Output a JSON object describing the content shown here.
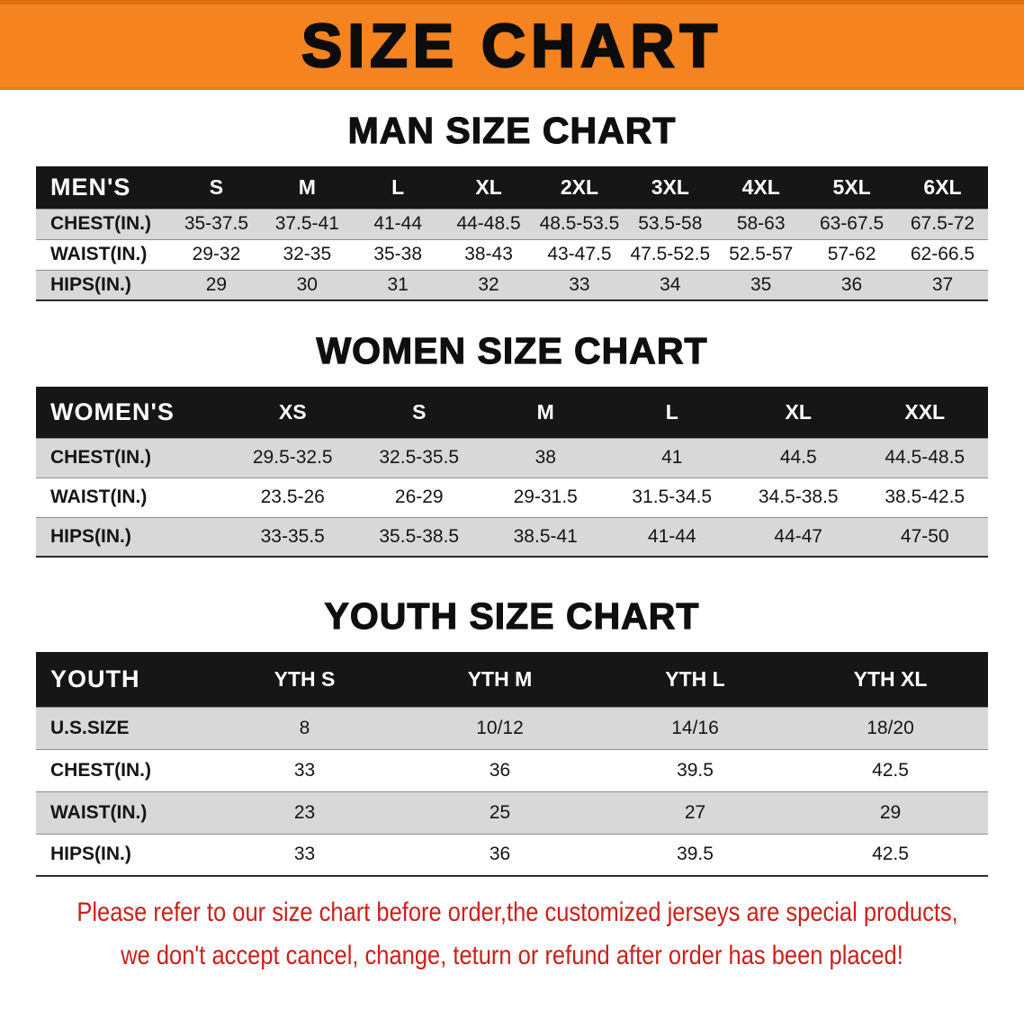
{
  "banner": {
    "title": "SIZE CHART",
    "bg_color": "#f5831f",
    "text_color": "#0c0c0c"
  },
  "colors": {
    "table_header_bg": "#161616",
    "row_stripe": "#d8d8d8",
    "notice_red": "#c9201a"
  },
  "sections": [
    {
      "heading": "MAN SIZE CHART",
      "table": {
        "header_label": "MEN'S",
        "columns": [
          "S",
          "M",
          "L",
          "XL",
          "2XL",
          "3XL",
          "4XL",
          "5XL",
          "6XL"
        ],
        "rows": [
          {
            "label": "CHEST(IN.)",
            "values": [
              "35-37.5",
              "37.5-41",
              "41-44",
              "44-48.5",
              "48.5-53.5",
              "53.5-58",
              "58-63",
              "63-67.5",
              "67.5-72"
            ]
          },
          {
            "label": "WAIST(IN.)",
            "values": [
              "29-32",
              "32-35",
              "35-38",
              "38-43",
              "43-47.5",
              "47.5-52.5",
              "52.5-57",
              "57-62",
              "62-66.5"
            ]
          },
          {
            "label": "HIPS(IN.)",
            "values": [
              "29",
              "30",
              "31",
              "32",
              "33",
              "34",
              "35",
              "36",
              "37"
            ]
          }
        ]
      }
    },
    {
      "heading": "WOMEN SIZE CHART",
      "table": {
        "header_label": "WOMEN'S",
        "columns": [
          "XS",
          "S",
          "M",
          "L",
          "XL",
          "XXL"
        ],
        "rows": [
          {
            "label": "CHEST(IN.)",
            "values": [
              "29.5-32.5",
              "32.5-35.5",
              "38",
              "41",
              "44.5",
              "44.5-48.5"
            ]
          },
          {
            "label": "WAIST(IN.)",
            "values": [
              "23.5-26",
              "26-29",
              "29-31.5",
              "31.5-34.5",
              "34.5-38.5",
              "38.5-42.5"
            ]
          },
          {
            "label": "HIPS(IN.)",
            "values": [
              "33-35.5",
              "35.5-38.5",
              "38.5-41",
              "41-44",
              "44-47",
              "47-50"
            ]
          }
        ]
      }
    },
    {
      "heading": "YOUTH SIZE CHART",
      "table": {
        "header_label": "YOUTH",
        "columns": [
          "YTH S",
          "YTH M",
          "YTH L",
          "YTH XL"
        ],
        "rows": [
          {
            "label": "U.S.SIZE",
            "values": [
              "8",
              "10/12",
              "14/16",
              "18/20"
            ]
          },
          {
            "label": "CHEST(IN.)",
            "values": [
              "33",
              "36",
              "39.5",
              "42.5"
            ]
          },
          {
            "label": "WAIST(IN.)",
            "values": [
              "23",
              "25",
              "27",
              "29"
            ]
          },
          {
            "label": "HIPS(IN.)",
            "values": [
              "33",
              "36",
              "39.5",
              "42.5"
            ]
          }
        ]
      }
    }
  ],
  "footer": {
    "line1": "Please refer to our size chart before order,the customized jerseys are special products,",
    "line2": "we don't accept cancel, change, teturn or refund after order has been placed!"
  }
}
